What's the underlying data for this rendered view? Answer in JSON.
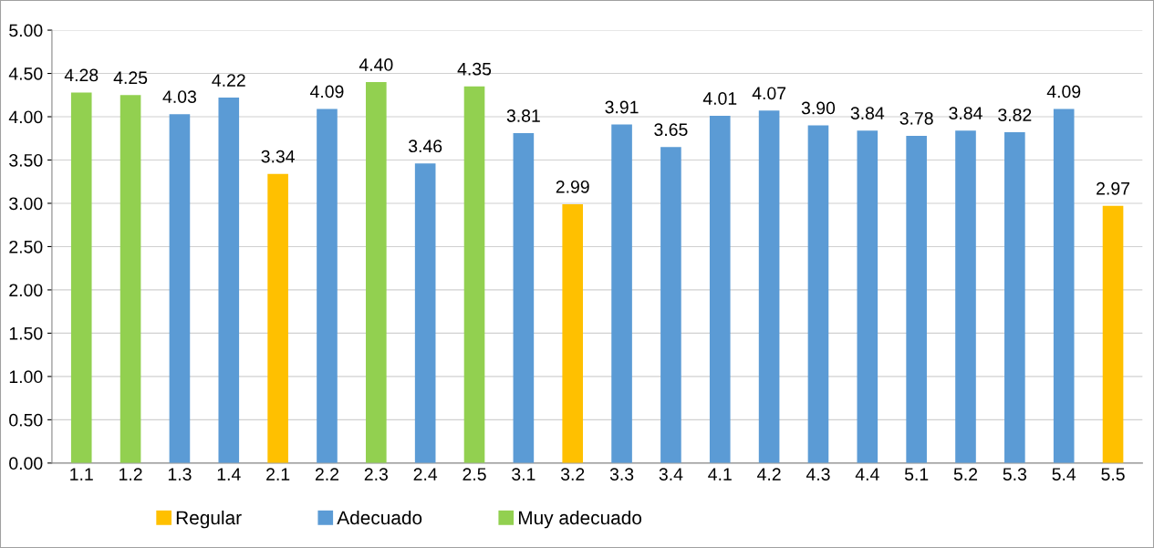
{
  "chart_data": {
    "type": "bar",
    "categories": [
      "1.1",
      "1.2",
      "1.3",
      "1.4",
      "2.1",
      "2.2",
      "2.3",
      "2.4",
      "2.5",
      "3.1",
      "3.2",
      "3.3",
      "3.4",
      "4.1",
      "4.2",
      "4.3",
      "4.4",
      "5.1",
      "5.2",
      "5.3",
      "5.4",
      "5.5"
    ],
    "series": [
      {
        "name": "Regular",
        "color": "#ffc000",
        "values": [
          null,
          null,
          null,
          null,
          3.34,
          null,
          null,
          null,
          null,
          null,
          2.99,
          null,
          null,
          null,
          null,
          null,
          null,
          null,
          null,
          null,
          null,
          2.97
        ],
        "value_labels": [
          null,
          null,
          null,
          null,
          "3.34",
          null,
          null,
          null,
          null,
          null,
          "2.99",
          null,
          null,
          null,
          null,
          null,
          null,
          null,
          null,
          null,
          null,
          "2.97"
        ]
      },
      {
        "name": "Adecuado",
        "color": "#5b9bd5",
        "values": [
          null,
          null,
          4.03,
          4.22,
          null,
          4.09,
          null,
          3.46,
          null,
          3.81,
          null,
          3.91,
          3.65,
          4.01,
          4.07,
          3.9,
          3.84,
          3.78,
          3.84,
          3.82,
          4.09,
          null
        ],
        "value_labels": [
          null,
          null,
          "4.03",
          "4.22",
          null,
          "4.09",
          null,
          "3.46",
          null,
          "3.81",
          null,
          "3.91",
          "3.65",
          "4.01",
          "4.07",
          "3.90",
          "3.84",
          "3.78",
          "3.84",
          "3.82",
          "4.09",
          null
        ]
      },
      {
        "name": "Muy adecuado",
        "color": "#92d050",
        "values": [
          4.28,
          4.25,
          null,
          null,
          null,
          null,
          4.4,
          null,
          4.35,
          null,
          null,
          null,
          null,
          null,
          null,
          null,
          null,
          null,
          null,
          null,
          null,
          null
        ],
        "value_labels": [
          "4.28",
          "4.25",
          null,
          null,
          null,
          null,
          "4.40",
          null,
          "4.35",
          null,
          null,
          null,
          null,
          null,
          null,
          null,
          null,
          null,
          null,
          null,
          null,
          null
        ]
      }
    ],
    "ylim": [
      0,
      5
    ],
    "yticks": [
      {
        "value": 0,
        "label": "0.00"
      },
      {
        "value": 0.5,
        "label": "0.50"
      },
      {
        "value": 1,
        "label": "1.00"
      },
      {
        "value": 1.5,
        "label": "1.50"
      },
      {
        "value": 2,
        "label": "2.00"
      },
      {
        "value": 2.5,
        "label": "2.50"
      },
      {
        "value": 3,
        "label": "3.00"
      },
      {
        "value": 3.5,
        "label": "3.50"
      },
      {
        "value": 4,
        "label": "4.00"
      },
      {
        "value": 4.5,
        "label": "4.50"
      },
      {
        "value": 5,
        "label": "5.00"
      }
    ],
    "grid": "y",
    "legend": "bottom"
  }
}
